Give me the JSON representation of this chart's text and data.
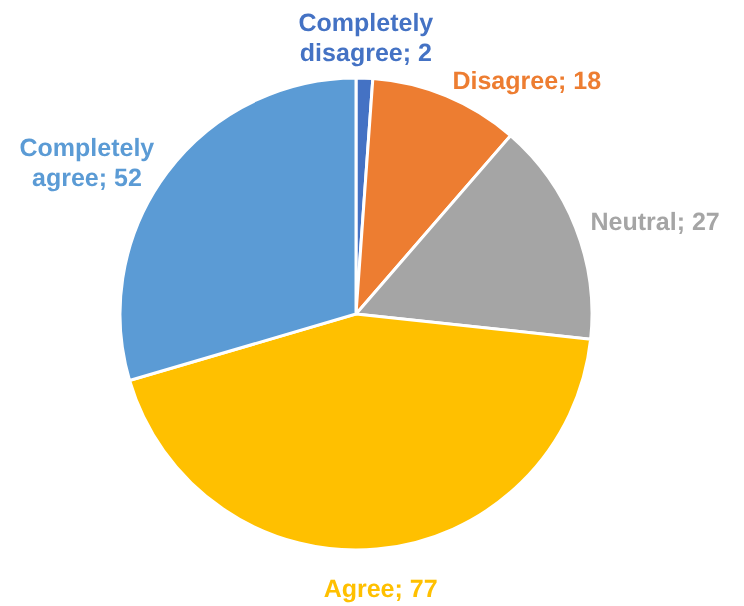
{
  "chart_data": {
    "type": "pie",
    "categories": [
      "Completely disagree",
      "Disagree",
      "Neutral",
      "Agree",
      "Completely agree"
    ],
    "values": [
      2,
      18,
      27,
      77,
      52
    ],
    "value_labels": [
      "; 2",
      "; 18",
      "; 27",
      "; 77",
      "; 52"
    ],
    "colors": [
      "#4472c4",
      "#ed7d31",
      "#a5a5a5",
      "#ffc000",
      "#5b9bd5"
    ]
  }
}
